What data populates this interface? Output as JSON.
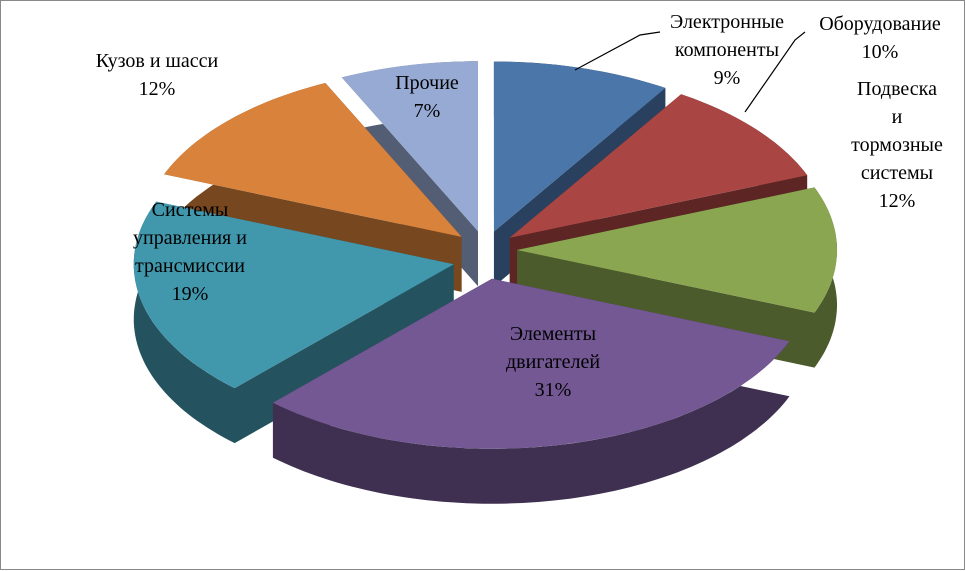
{
  "chart_data": {
    "type": "pie3d",
    "categories": [
      "Электронные компоненты",
      "Оборудование",
      "Подвеска и тормозные системы",
      "Элементы двигателей",
      "Системы управления и трансмиссии",
      "Кузов и шасси",
      "Прочие"
    ],
    "values": [
      9,
      10,
      12,
      31,
      19,
      12,
      7
    ],
    "value_labels": [
      "9%",
      "10%",
      "12%",
      "31%",
      "19%",
      "12%",
      "7%"
    ],
    "colors": [
      "#4a76aa",
      "#a94543",
      "#8ba650",
      "#735893",
      "#4197ac",
      "#d8823b",
      "#96aad3"
    ]
  }
}
